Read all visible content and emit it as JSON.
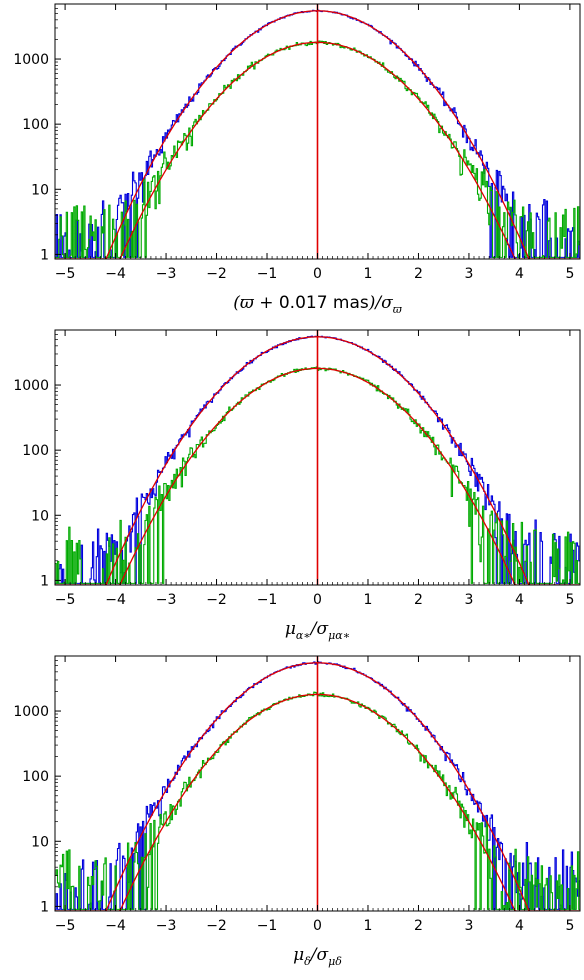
{
  "figure": {
    "colors": {
      "gauss": "#e00000",
      "blue_hist": "#0000dd",
      "green_hist": "#00aa00",
      "frame": "#000000"
    }
  },
  "chart_data": [
    {
      "type": "line",
      "xlabel": "(ϖ + 0.017 mas)/σ_ϖ",
      "xlabel_parts": {
        "pre": "(ϖ + ",
        "mid": "0.017 mas",
        "post": ")/σ",
        "sub": "ϖ"
      },
      "xlim": [
        -5.2,
        5.2
      ],
      "ylim": [
        0.85,
        7000
      ],
      "y_scale": "log",
      "x_ticks": [
        -5,
        -4,
        -3,
        -2,
        -1,
        0,
        1,
        2,
        3,
        4,
        5
      ],
      "x_tick_labels": [
        "−5",
        "−4",
        "−3",
        "−2",
        "−1",
        "0",
        "1",
        "2",
        "3",
        "4",
        "5"
      ],
      "y_ticks": [
        1,
        10,
        100,
        1000
      ],
      "y_tick_labels": [
        "1",
        "10",
        "100",
        "1000"
      ],
      "grid": false,
      "vertical_line_x": 0,
      "series": [
        {
          "kind": "histogram",
          "color": "#0000dd",
          "peak": 5500,
          "tail_noise_from": 3.4,
          "x": [
            -5,
            -4,
            -3,
            -2,
            -1,
            0,
            1,
            2,
            3,
            4,
            5
          ],
          "values": [
            1,
            4,
            60,
            770,
            3340,
            5500,
            3340,
            770,
            60,
            4,
            1
          ]
        },
        {
          "kind": "histogram",
          "color": "#00aa00",
          "peak": 1800,
          "tail_noise_from": 3.2,
          "x": [
            -5,
            -4,
            -3,
            -2,
            -1,
            0,
            1,
            2,
            3,
            4,
            5
          ],
          "values": [
            2,
            4,
            25,
            250,
            1090,
            1800,
            1090,
            250,
            25,
            4,
            2
          ]
        },
        {
          "kind": "gaussian",
          "color": "#e00000",
          "amplitude": 5500,
          "sigma": 1.0
        },
        {
          "kind": "gaussian",
          "color": "#e00000",
          "amplitude": 1800,
          "sigma": 1.0
        }
      ]
    },
    {
      "type": "line",
      "xlabel": "μ_α*/σ_μα*",
      "xlabel_parts": {
        "pre": "μ",
        "sub1": "α∗",
        "mid": "/σ",
        "sub2": "μα∗"
      },
      "xlim": [
        -5.2,
        5.2
      ],
      "ylim": [
        0.85,
        7000
      ],
      "y_scale": "log",
      "x_ticks": [
        -5,
        -4,
        -3,
        -2,
        -1,
        0,
        1,
        2,
        3,
        4,
        5
      ],
      "x_tick_labels": [
        "−5",
        "−4",
        "−3",
        "−2",
        "−1",
        "0",
        "1",
        "2",
        "3",
        "4",
        "5"
      ],
      "y_ticks": [
        1,
        10,
        100,
        1000
      ],
      "y_tick_labels": [
        "1",
        "10",
        "100",
        "1000"
      ],
      "grid": false,
      "vertical_line_x": 0,
      "series": [
        {
          "kind": "histogram",
          "color": "#0000dd",
          "peak": 5500,
          "tail_noise_from": 3.5,
          "x": [
            -5,
            -4,
            -3,
            -2,
            -1,
            0,
            1,
            2,
            3,
            4,
            5
          ],
          "values": [
            1,
            4,
            60,
            770,
            3340,
            5500,
            3340,
            770,
            60,
            4,
            1
          ]
        },
        {
          "kind": "histogram",
          "color": "#00aa00",
          "peak": 1800,
          "tail_noise_from": 3.0,
          "x": [
            -5,
            -4,
            -3,
            -2,
            -1,
            0,
            1,
            2,
            3,
            4,
            5
          ],
          "values": [
            2,
            5,
            30,
            260,
            1090,
            1800,
            1090,
            260,
            30,
            5,
            2
          ]
        },
        {
          "kind": "gaussian",
          "color": "#e00000",
          "amplitude": 5500,
          "sigma": 1.0
        },
        {
          "kind": "gaussian",
          "color": "#e00000",
          "amplitude": 1800,
          "sigma": 1.0
        }
      ]
    },
    {
      "type": "line",
      "xlabel": "μ_δ/σ_μδ",
      "xlabel_parts": {
        "pre": "μ",
        "sub1": "δ",
        "mid": "/σ",
        "sub2": "μδ"
      },
      "xlim": [
        -5.2,
        5.2
      ],
      "ylim": [
        0.85,
        7000
      ],
      "y_scale": "log",
      "x_ticks": [
        -5,
        -4,
        -3,
        -2,
        -1,
        0,
        1,
        2,
        3,
        4,
        5
      ],
      "x_tick_labels": [
        "−5",
        "−4",
        "−3",
        "−2",
        "−1",
        "0",
        "1",
        "2",
        "3",
        "4",
        "5"
      ],
      "y_ticks": [
        1,
        10,
        100,
        1000
      ],
      "y_tick_labels": [
        "1",
        "10",
        "100",
        "1000"
      ],
      "grid": false,
      "vertical_line_x": 0,
      "series": [
        {
          "kind": "histogram",
          "color": "#0000dd",
          "peak": 5500,
          "tail_noise_from": 3.3,
          "x": [
            -5,
            -4,
            -3,
            -2,
            -1,
            0,
            1,
            2,
            3,
            4,
            5
          ],
          "values": [
            1,
            6,
            80,
            800,
            3340,
            5500,
            3340,
            800,
            80,
            6,
            1
          ]
        },
        {
          "kind": "histogram",
          "color": "#00aa00",
          "peak": 1800,
          "tail_noise_from": 3.0,
          "x": [
            -5,
            -4,
            -3,
            -2,
            -1,
            0,
            1,
            2,
            3,
            4,
            5
          ],
          "values": [
            3,
            8,
            50,
            300,
            1100,
            1800,
            1100,
            300,
            50,
            8,
            3
          ]
        },
        {
          "kind": "gaussian",
          "color": "#e00000",
          "amplitude": 5500,
          "sigma": 1.0
        },
        {
          "kind": "gaussian",
          "color": "#e00000",
          "amplitude": 1800,
          "sigma": 1.0
        }
      ]
    }
  ]
}
